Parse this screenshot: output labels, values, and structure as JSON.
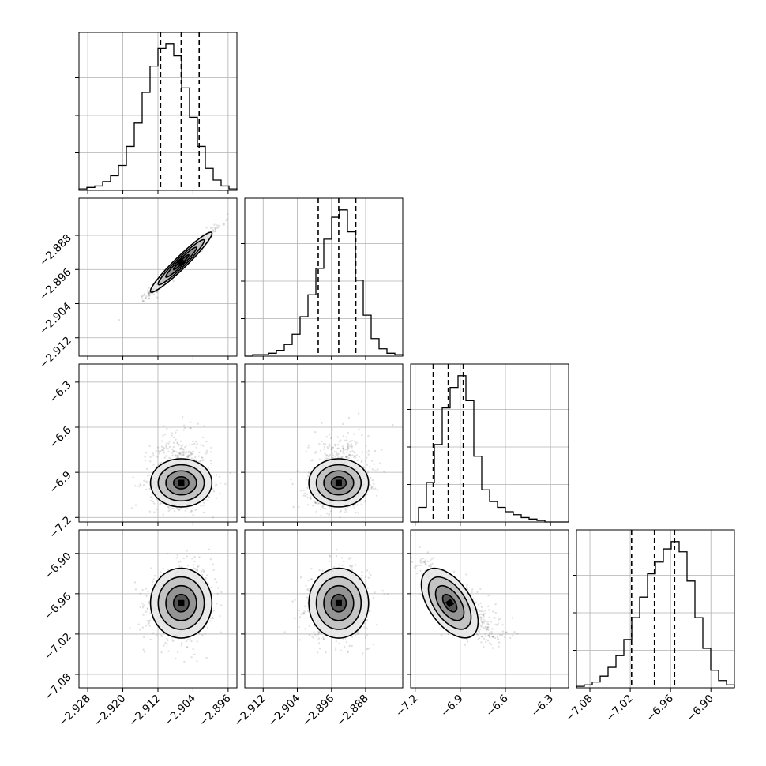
{
  "chart_data": {
    "type": "corner",
    "parameters": [
      {
        "name": "",
        "range": [
          -2.93,
          -2.894
        ],
        "ticks": [
          -2.928,
          -2.92,
          -2.912,
          -2.904,
          -2.896
        ],
        "tick_labels": [
          "−2.928",
          "−2.920",
          "−2.912",
          "−2.904",
          "−2.896"
        ],
        "quantiles": [
          -2.9114,
          -2.9067,
          -2.9026
        ],
        "mean": -2.9067,
        "sd": 0.0035
      },
      {
        "name": "",
        "range": [
          -2.9163,
          -2.8793
        ],
        "ticks": [
          -2.912,
          -2.904,
          -2.896,
          -2.888
        ],
        "tick_labels": [
          "−2.912",
          "−2.904",
          "−2.896",
          "−2.888"
        ],
        "quantiles": [
          -2.8991,
          -2.8943,
          -2.8903
        ],
        "mean": -2.8943,
        "sd": 0.0035
      },
      {
        "name": "",
        "range": [
          -7.23,
          -6.18
        ],
        "ticks": [
          -7.2,
          -6.9,
          -6.6,
          -6.3
        ],
        "tick_labels": [
          "−7.2",
          "−6.9",
          "−6.6",
          "−6.3"
        ],
        "quantiles": [
          -7.08,
          -6.98,
          -6.88
        ],
        "mean": -6.97,
        "sd": 0.08
      },
      {
        "name": "",
        "range": [
          -7.1,
          -6.865
        ],
        "ticks": [
          -7.08,
          -7.02,
          -6.96,
          -6.9
        ],
        "tick_labels": [
          "−7.08",
          "−7.02",
          "−6.96",
          "−6.90"
        ],
        "quantiles": [
          -7.018,
          -6.984,
          -6.954
        ],
        "mean": -6.974,
        "sd": 0.026
      }
    ],
    "histograms": [
      {
        "param": 0,
        "counts": [
          0.01,
          0.02,
          0.03,
          0.06,
          0.1,
          0.17,
          0.3,
          0.46,
          0.67,
          0.85,
          0.97,
          1.0,
          0.92,
          0.7,
          0.5,
          0.3,
          0.15,
          0.07,
          0.03,
          0.01
        ]
      },
      {
        "param": 1,
        "counts": [
          0.0,
          0.01,
          0.01,
          0.02,
          0.04,
          0.08,
          0.15,
          0.27,
          0.42,
          0.6,
          0.8,
          0.95,
          1.0,
          0.85,
          0.52,
          0.28,
          0.12,
          0.05,
          0.02,
          0.01
        ]
      },
      {
        "param": 2,
        "counts": [
          0.0,
          0.1,
          0.27,
          0.53,
          0.78,
          0.92,
          1.0,
          0.83,
          0.45,
          0.22,
          0.14,
          0.1,
          0.07,
          0.05,
          0.03,
          0.02,
          0.01,
          0.0,
          0.0,
          0.0
        ]
      },
      {
        "param": 3,
        "counts": [
          0.01,
          0.02,
          0.04,
          0.08,
          0.14,
          0.22,
          0.33,
          0.48,
          0.62,
          0.78,
          0.86,
          0.95,
          1.0,
          0.93,
          0.73,
          0.48,
          0.27,
          0.12,
          0.05,
          0.02
        ]
      }
    ],
    "pairs": [
      {
        "x": 0,
        "y": 1,
        "correlation": 0.98
      },
      {
        "x": 0,
        "y": 2,
        "correlation": 0.0
      },
      {
        "x": 1,
        "y": 2,
        "correlation": 0.1
      },
      {
        "x": 0,
        "y": 3,
        "correlation": 0.15
      },
      {
        "x": 1,
        "y": 3,
        "correlation": 0.05
      },
      {
        "x": 2,
        "y": 3,
        "correlation": -0.75
      }
    ],
    "contour_levels_sigma": [
      0.5,
      1.0,
      1.5,
      2.0
    ],
    "grid": true,
    "legend": "none"
  }
}
